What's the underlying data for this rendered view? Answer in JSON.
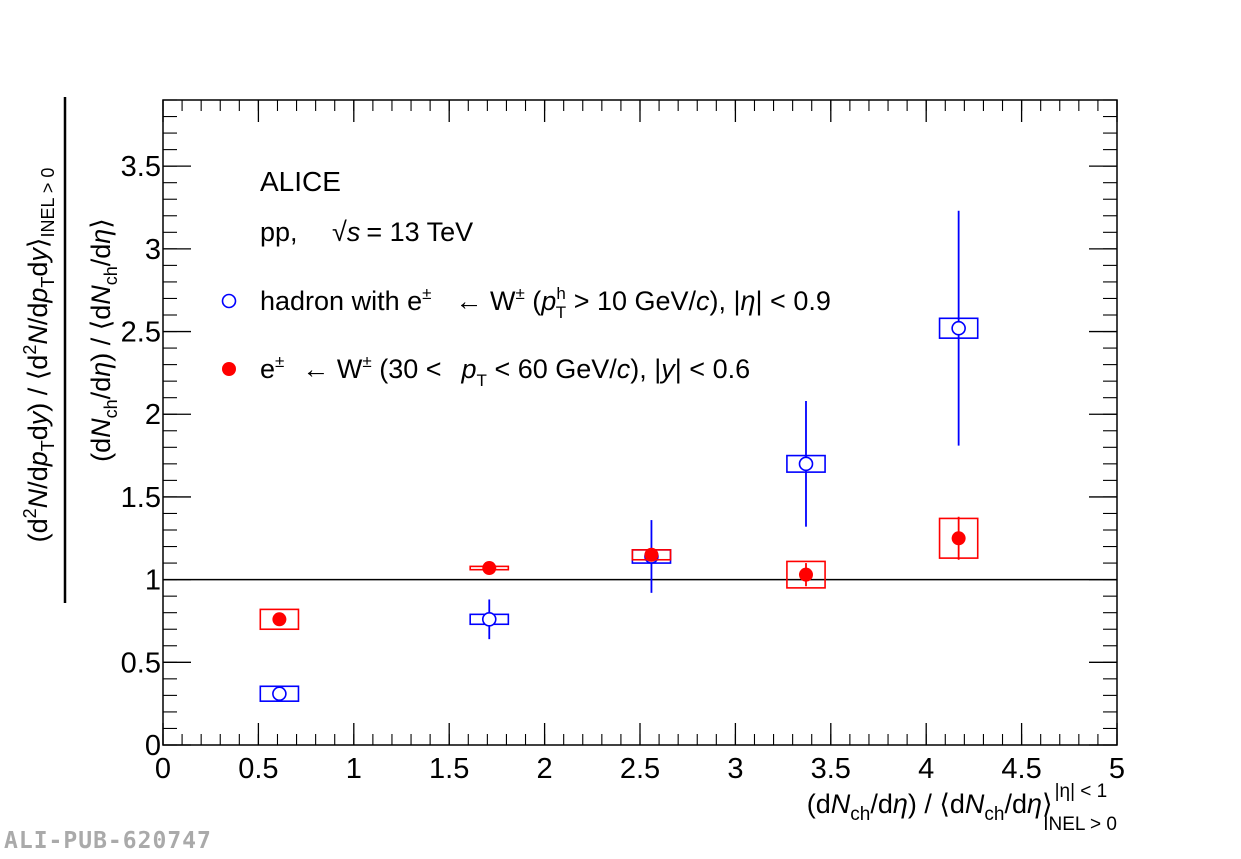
{
  "chart_data": {
    "type": "scatter",
    "xlim": [
      0,
      5
    ],
    "ylim": [
      0,
      3.9
    ],
    "x_ticks": [
      0,
      0.5,
      1,
      1.5,
      2,
      2.5,
      3,
      3.5,
      4,
      4.5,
      5
    ],
    "x_tick_labels": [
      "0",
      "0.5",
      "1",
      "1.5",
      "2",
      "2.5",
      "3",
      "3.5",
      "4",
      "4.5",
      "5"
    ],
    "y_ticks": [
      0,
      0.5,
      1,
      1.5,
      2,
      2.5,
      3,
      3.5
    ],
    "y_tick_labels": [
      "0",
      "0.5",
      "1",
      "1.5",
      "2",
      "2.5",
      "3",
      "3.5"
    ],
    "reference_line_y": 1,
    "grid": false,
    "legend_position": "top-left",
    "annotations": {
      "experiment": "ALICE",
      "collision_prefix": "pp,",
      "energy_value": "= 13 TeV"
    },
    "xlabel": "(dNch/dη) / ⟨dNch/dη⟩ |η| < 1 INEL > 0",
    "ylabel": "(d²N/dpTdy) / ⟨d²N/dpTdy⟩INEL > 0 / (dNch/dη) / ⟨dNch/dη⟩",
    "series": [
      {
        "name": "hadron with e± ← W± (pTh > 10 GeV/c), |η| < 0.9",
        "marker": "open-circle",
        "color": "#0000ff",
        "x": [
          0.61,
          1.71,
          2.56,
          3.37,
          4.17
        ],
        "y": [
          0.31,
          0.76,
          1.14,
          1.7,
          2.52
        ],
        "stat_err": [
          0.04,
          0.12,
          0.22,
          0.38,
          0.71
        ],
        "syst_err": [
          0.045,
          0.03,
          0.04,
          0.05,
          0.06
        ],
        "syst_half_width": [
          0.1,
          0.1,
          0.1,
          0.1,
          0.1
        ]
      },
      {
        "name": "e± ← W± (30 < pT < 60 GeV/c), |y| < 0.6",
        "marker": "filled-circle",
        "color": "#ff0000",
        "x": [
          0.61,
          1.71,
          2.56,
          3.37,
          4.17
        ],
        "y": [
          0.76,
          1.07,
          1.15,
          1.03,
          1.25
        ],
        "stat_err": [
          0.02,
          0.03,
          0.03,
          0.07,
          0.13
        ],
        "syst_err": [
          0.06,
          0.01,
          0.03,
          0.08,
          0.12
        ],
        "syst_half_width": [
          0.1,
          0.1,
          0.1,
          0.1,
          0.1
        ]
      }
    ]
  },
  "watermark": "ALI-PUB-620747"
}
